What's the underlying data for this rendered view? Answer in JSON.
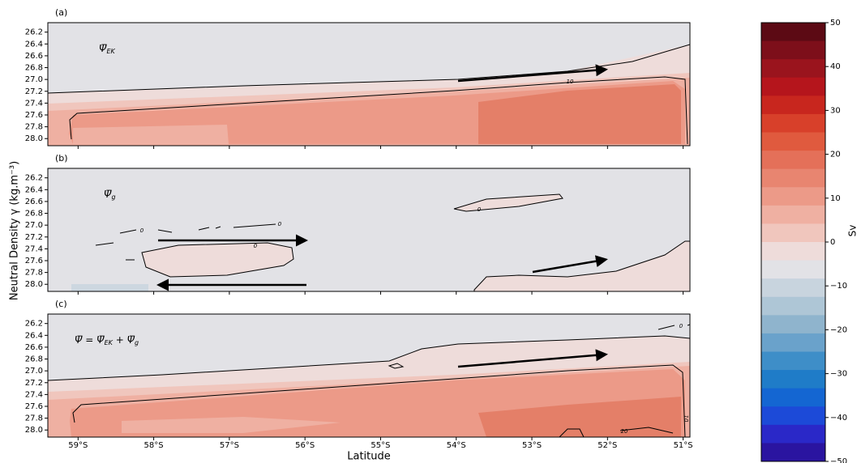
{
  "chart_data": {
    "type": "contour",
    "x_label": "Latitude",
    "y_label": "Neutral Density γ (kg.m⁻³)",
    "xlim": [
      -59.4,
      -50.91
    ],
    "xticks": [
      {
        "value": -59,
        "label": "59°S"
      },
      {
        "value": -58,
        "label": "58°S"
      },
      {
        "value": -57,
        "label": "57°S"
      },
      {
        "value": -56,
        "label": "56°S"
      },
      {
        "value": -55,
        "label": "55°S"
      },
      {
        "value": -54,
        "label": "54°S"
      },
      {
        "value": -53,
        "label": "53°S"
      },
      {
        "value": -52,
        "label": "52°S"
      },
      {
        "value": -51,
        "label": "51°S"
      }
    ],
    "ylim": [
      26.04,
      28.12
    ],
    "yticks": [
      {
        "value": 26.2,
        "label": "26.2"
      },
      {
        "value": 26.4,
        "label": "26.4"
      },
      {
        "value": 26.6,
        "label": "26.6"
      },
      {
        "value": 26.8,
        "label": "26.8"
      },
      {
        "value": 27.0,
        "label": "27.0"
      },
      {
        "value": 27.2,
        "label": "27.2"
      },
      {
        "value": 27.4,
        "label": "27.4"
      },
      {
        "value": 27.6,
        "label": "27.6"
      },
      {
        "value": 27.8,
        "label": "27.8"
      },
      {
        "value": 28.0,
        "label": "28.0"
      }
    ],
    "panels": [
      {
        "label": "(a)",
        "annotation": [
          {
            "text": "Ψ̅"
          },
          {
            "text": "EK",
            "sub": true
          }
        ],
        "contour_labels": [
          "10"
        ]
      },
      {
        "label": "(b)",
        "annotation": [
          {
            "text": "Ψ̅"
          },
          {
            "text": "g",
            "sub": true
          }
        ],
        "contour_labels": [
          "0",
          "0",
          "0",
          "0"
        ]
      },
      {
        "label": "(c)",
        "annotation": [
          {
            "text": "Ψ̅"
          },
          {
            "text": " = "
          },
          {
            "text": "Ψ̅"
          },
          {
            "text": "EK",
            "sub": true
          },
          {
            "text": " + "
          },
          {
            "text": "Ψ̅"
          },
          {
            "text": "g",
            "sub": true
          }
        ],
        "contour_labels": [
          "0",
          "20",
          "10"
        ]
      }
    ],
    "colorbar": {
      "label": "Sv",
      "lim": [
        -50,
        50
      ],
      "ticks": [
        50,
        40,
        30,
        20,
        10,
        0,
        {
          "value": -10,
          "label": "−10"
        },
        {
          "value": -20,
          "label": "−20"
        },
        {
          "value": -30,
          "label": "−30"
        },
        {
          "value": -40,
          "label": "−40"
        },
        {
          "value": -50,
          "label": "−50"
        }
      ],
      "colors": [
        "#5c0a14",
        "#7d0f1a",
        "#9a141d",
        "#b5151c",
        "#c8261e",
        "#d8402a",
        "#e05a3e",
        "#e47059",
        "#e88570",
        "#ec9a88",
        "#efb0a2",
        "#f0c6bd",
        "#eedcda",
        "#e2e2e6",
        "#c8d4de",
        "#aec6d6",
        "#8fb4cd",
        "#6aa2cb",
        "#3e8ec8",
        "#1f7cc8",
        "#1466d2",
        "#1c4ad8",
        "#2a28c8",
        "#2a14a0"
      ]
    }
  }
}
